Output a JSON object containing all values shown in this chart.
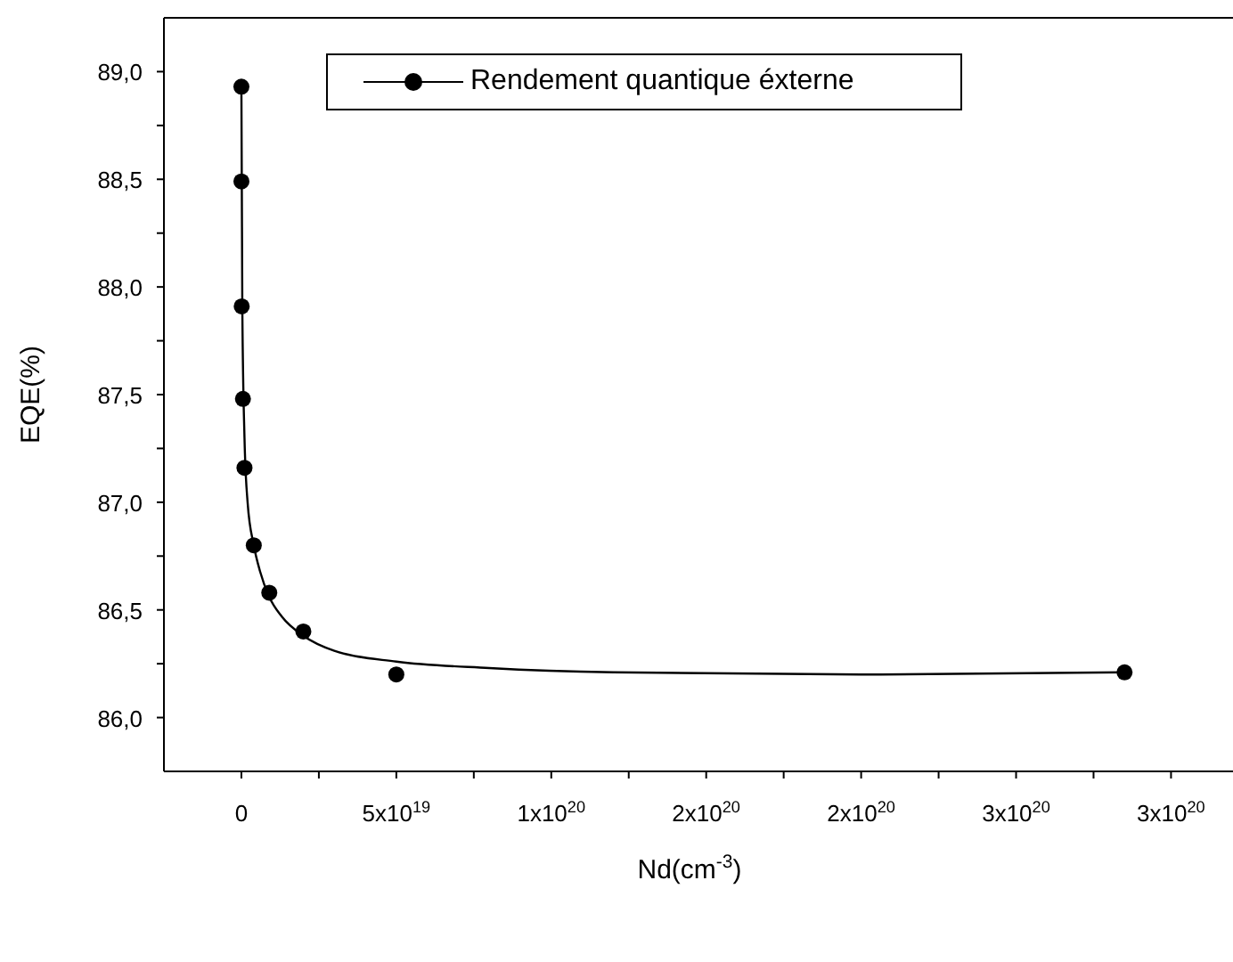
{
  "chart_data": {
    "type": "scatter",
    "xlabel": "Nd(cm$^{-3}$)",
    "ylabel": "EQE(%)",
    "xlim": [
      -2.5e+19,
      3.2e+20
    ],
    "ylim": [
      85.75,
      89.25
    ],
    "xticks": [
      {
        "value": 0,
        "label": "0"
      },
      {
        "value": 2.5e+19,
        "label": null
      },
      {
        "value": 5e+19,
        "label": "5x10$^{19}$"
      },
      {
        "value": 7.5e+19,
        "label": null
      },
      {
        "value": 1e+20,
        "label": "1x10$^{20}$"
      },
      {
        "value": 1.25e+20,
        "label": null
      },
      {
        "value": 1.5e+20,
        "label": "2x10$^{20}$"
      },
      {
        "value": 1.75e+20,
        "label": null
      },
      {
        "value": 2e+20,
        "label": "2x10$^{20}$"
      },
      {
        "value": 2.25e+20,
        "label": null
      },
      {
        "value": 2.5e+20,
        "label": "3x10$^{20}$"
      },
      {
        "value": 2.75e+20,
        "label": null
      },
      {
        "value": 3e+20,
        "label": "3x10$^{20}$"
      }
    ],
    "yticks": [
      {
        "value": 86,
        "label": "86,0"
      },
      {
        "value": 86.25,
        "label": null
      },
      {
        "value": 86.5,
        "label": "86,5"
      },
      {
        "value": 86.75,
        "label": null
      },
      {
        "value": 87,
        "label": "87,0"
      },
      {
        "value": 87.25,
        "label": null
      },
      {
        "value": 87.5,
        "label": "87,5"
      },
      {
        "value": 87.75,
        "label": null
      },
      {
        "value": 88,
        "label": "88,0"
      },
      {
        "value": 88.25,
        "label": null
      },
      {
        "value": 88.5,
        "label": "88,5"
      },
      {
        "value": 88.75,
        "label": null
      },
      {
        "value": 89,
        "label": "89,0"
      }
    ],
    "legend": "top",
    "series": [
      {
        "name": "Rendement quantique éxterne",
        "marker": "circle",
        "color": "#000000",
        "x": [
          1000000000000000.0,
          1e+16,
          1e+17,
          5e+17,
          1e+18,
          4e+18,
          9e+18,
          2e+19,
          5e+19,
          2.85e+20
        ],
        "values": [
          88.93,
          88.49,
          87.91,
          87.48,
          87.16,
          86.8,
          86.58,
          86.4,
          86.2,
          86.21
        ]
      },
      {
        "type": "line",
        "marker": "none",
        "color": "#000000",
        "x": [
          0,
          3e+17,
          1e+18,
          2e+18,
          4e+18,
          6e+18,
          9e+18,
          1.3e+19,
          2e+19,
          3e+19,
          5e+19,
          8e+19,
          1.2e+20,
          2e+20,
          2.85e+20
        ],
        "values": [
          88.93,
          87.9,
          87.3,
          87.0,
          86.8,
          86.68,
          86.56,
          86.47,
          86.38,
          86.31,
          86.26,
          86.23,
          86.21,
          86.2,
          86.21
        ]
      }
    ]
  }
}
